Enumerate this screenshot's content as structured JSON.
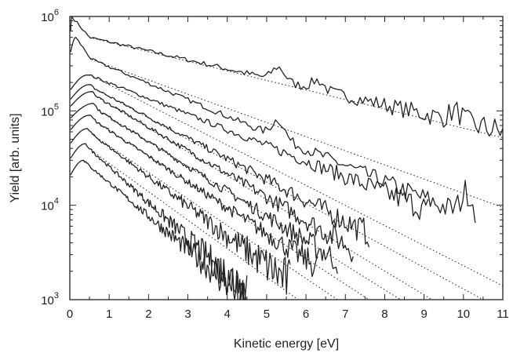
{
  "chart_data": {
    "type": "line",
    "title": "",
    "xlabel": "Kinetic energy [eV]",
    "ylabel": "Yield [arb. units]",
    "xlim": [
      0,
      11
    ],
    "ylim": [
      1000,
      1000000
    ],
    "yscale": "log",
    "grid": false,
    "legend": "none",
    "x_ticks": [
      "0",
      "1",
      "2",
      "3",
      "4",
      "5",
      "6",
      "7",
      "8",
      "9",
      "10",
      "11"
    ],
    "y_ticks": [
      {
        "base": "10",
        "exp": "3",
        "value": 1000
      },
      {
        "base": "10",
        "exp": "4",
        "value": 10000
      },
      {
        "base": "10",
        "exp": "5",
        "value": 100000
      },
      {
        "base": "10",
        "exp": "6",
        "value": 1000000
      }
    ],
    "line_color": "#222222",
    "fit_line_style": "dotted",
    "series": [
      {
        "peak": [
          0.05,
          1000000
        ],
        "slope_start": [
          0.5,
          600000
        ],
        "end": [
          11.0,
          60000
        ],
        "features": [
          [
            5.3,
            290000
          ],
          [
            6.3,
            210000
          ],
          [
            9.8,
            100000
          ]
        ],
        "fit_end": [
          11.0,
          52000
        ]
      },
      {
        "peak": [
          0.15,
          600000
        ],
        "slope_start": [
          0.55,
          350000
        ],
        "end": [
          10.3,
          7000
        ],
        "features": [
          [
            5.3,
            80000
          ],
          [
            10.1,
            14000
          ]
        ],
        "fit_end": [
          11.0,
          9500
        ]
      },
      {
        "peak": [
          0.45,
          240000
        ],
        "slope_start": [
          0.6,
          230000
        ],
        "end": [
          9.1,
          9000
        ],
        "fit_end": [
          11.0,
          1400
        ]
      },
      {
        "peak": [
          0.5,
          190000
        ],
        "slope_start": [
          0.65,
          170000
        ],
        "end": [
          7.6,
          5000
        ],
        "fit_end": [
          10.5,
          1000
        ]
      },
      {
        "peak": [
          0.55,
          160000
        ],
        "slope_start": [
          0.7,
          140000
        ],
        "end": [
          7.2,
          3500
        ],
        "fit_end": [
          9.2,
          1000
        ]
      },
      {
        "peak": [
          0.6,
          120000
        ],
        "slope_start": [
          0.75,
          100000
        ],
        "end": [
          6.8,
          2600
        ],
        "fit_end": [
          8.4,
          1000
        ]
      },
      {
        "peak": [
          0.5,
          90000
        ],
        "slope_start": [
          0.7,
          75000
        ],
        "end": [
          6.3,
          2200
        ],
        "fit_end": [
          7.6,
          1000
        ]
      },
      {
        "peak": [
          0.45,
          65000
        ],
        "slope_start": [
          0.6,
          55000
        ],
        "end": [
          5.6,
          1500
        ],
        "fit_end": [
          6.8,
          1000
        ]
      },
      {
        "peak": [
          0.4,
          45000
        ],
        "slope_start": [
          0.55,
          38000
        ],
        "end": [
          4.5,
          1200
        ],
        "fit_end": [
          5.8,
          1000
        ]
      },
      {
        "peak": [
          0.35,
          30000
        ],
        "slope_start": [
          0.5,
          26000
        ],
        "end": [
          4.5,
          1000
        ]
      }
    ]
  }
}
